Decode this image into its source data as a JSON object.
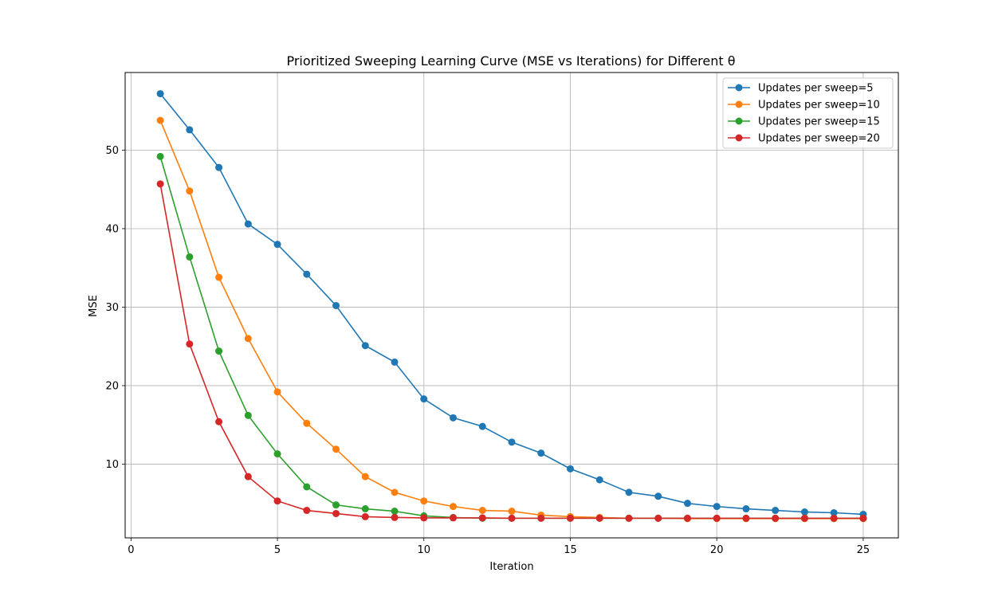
{
  "chart_data": {
    "type": "line",
    "title": "Prioritized Sweeping Learning Curve (MSE vs Iterations) for Different θ",
    "xlabel": "Iteration",
    "ylabel": "MSE",
    "xlim": [
      -0.2,
      26.2
    ],
    "ylim": [
      0.6,
      59.9
    ],
    "xticks": [
      0,
      5,
      10,
      15,
      20,
      25
    ],
    "yticks": [
      10,
      20,
      30,
      40,
      50
    ],
    "grid": true,
    "legend_position": "top-right",
    "x": [
      1,
      2,
      3,
      4,
      5,
      6,
      7,
      8,
      9,
      10,
      11,
      12,
      13,
      14,
      15,
      16,
      17,
      18,
      19,
      20,
      21,
      22,
      23,
      24,
      25
    ],
    "series": [
      {
        "name": "Updates per sweep=5",
        "color": "#1f77b4",
        "values": [
          57.2,
          52.6,
          47.8,
          40.6,
          38.0,
          34.2,
          30.2,
          25.1,
          23.0,
          18.3,
          15.9,
          14.8,
          12.8,
          11.4,
          9.4,
          8.0,
          6.4,
          5.9,
          5.0,
          4.6,
          4.3,
          4.1,
          3.9,
          3.8,
          3.6
        ]
      },
      {
        "name": "Updates per sweep=10",
        "color": "#ff7f0e",
        "values": [
          53.8,
          44.8,
          33.8,
          26.0,
          19.2,
          15.2,
          11.9,
          8.4,
          6.4,
          5.3,
          4.6,
          4.1,
          4.0,
          3.5,
          3.3,
          3.2,
          3.1,
          3.1,
          3.05,
          3.05,
          3.05,
          3.05,
          3.05,
          3.05,
          3.05
        ]
      },
      {
        "name": "Updates per sweep=15",
        "color": "#2ca02c",
        "values": [
          49.2,
          36.4,
          24.4,
          16.2,
          11.3,
          7.1,
          4.8,
          4.3,
          4.0,
          3.4,
          3.2,
          3.1,
          3.1,
          3.1,
          3.1,
          3.1,
          3.1,
          3.1,
          3.1,
          3.1,
          3.1,
          3.1,
          3.1,
          3.1,
          3.1
        ]
      },
      {
        "name": "Updates per sweep=20",
        "color": "#d62728",
        "values": [
          45.7,
          25.3,
          15.4,
          8.4,
          5.3,
          4.1,
          3.7,
          3.3,
          3.2,
          3.15,
          3.15,
          3.15,
          3.1,
          3.1,
          3.1,
          3.1,
          3.1,
          3.1,
          3.1,
          3.1,
          3.1,
          3.1,
          3.1,
          3.1,
          3.1
        ]
      }
    ]
  }
}
